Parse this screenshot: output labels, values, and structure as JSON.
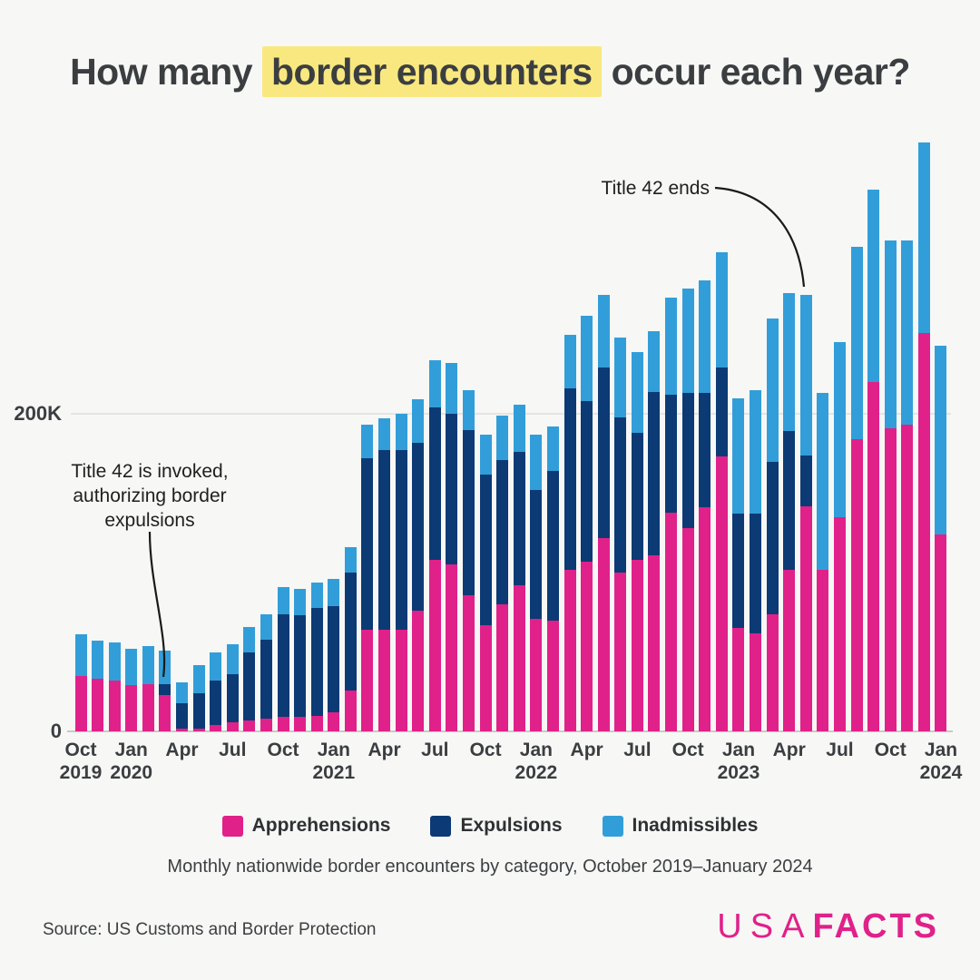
{
  "title": {
    "pre": "How many ",
    "highlight": "border encounters",
    "post": " occur each year?"
  },
  "y_axis": {
    "label_200k": "200K",
    "label_zero": "0"
  },
  "annotations": {
    "invoked": {
      "line1": "Title 42 is invoked,",
      "line2": "authorizing border",
      "line3": "expulsions"
    },
    "ends": "Title 42 ends"
  },
  "legend": [
    {
      "label": "Apprehensions",
      "color": "#e0218a"
    },
    {
      "label": "Expulsions",
      "color": "#0c3a74"
    },
    {
      "label": "Inadmissibles",
      "color": "#329ed9"
    }
  ],
  "subtitle": "Monthly nationwide border encounters by category, October 2019–January 2024",
  "source": "Source: US Customs and Border Protection",
  "logo": {
    "usa": "USA",
    "facts": "FACTS"
  },
  "chart_data": {
    "type": "bar",
    "stacked": true,
    "units": "thousands",
    "title": "How many border encounters occur each year?",
    "subtitle": "Monthly nationwide border encounters by category, October 2019–January 2024",
    "ylim": [
      0,
      380
    ],
    "yticks": [
      {
        "value": 0,
        "label": "0"
      },
      {
        "value": 200,
        "label": "200K"
      }
    ],
    "grid": "200K line only",
    "legend_position": "bottom",
    "x": [
      "Oct 2019",
      "Nov 2019",
      "Dec 2019",
      "Jan 2020",
      "Feb 2020",
      "Mar 2020",
      "Apr 2020",
      "May 2020",
      "Jun 2020",
      "Jul 2020",
      "Aug 2020",
      "Sep 2020",
      "Oct 2020",
      "Nov 2020",
      "Dec 2020",
      "Jan 2021",
      "Feb 2021",
      "Mar 2021",
      "Apr 2021",
      "May 2021",
      "Jun 2021",
      "Jul 2021",
      "Aug 2021",
      "Sep 2021",
      "Oct 2021",
      "Nov 2021",
      "Dec 2021",
      "Jan 2022",
      "Feb 2022",
      "Mar 2022",
      "Apr 2022",
      "May 2022",
      "Jun 2022",
      "Jul 2022",
      "Aug 2022",
      "Sep 2022",
      "Oct 2022",
      "Nov 2022",
      "Dec 2022",
      "Jan 2023",
      "Feb 2023",
      "Mar 2023",
      "Apr 2023",
      "May 2023",
      "Jun 2023",
      "Jul 2023",
      "Aug 2023",
      "Sep 2023",
      "Oct 2023",
      "Nov 2023",
      "Dec 2023",
      "Jan 2024"
    ],
    "series": [
      {
        "name": "Apprehensions",
        "color": "#e0218a",
        "values": [
          35,
          33,
          32,
          29,
          30,
          23,
          2,
          2,
          4,
          6,
          7,
          8,
          9,
          9,
          10,
          12,
          26,
          64,
          64,
          64,
          76,
          108,
          105,
          86,
          67,
          80,
          92,
          71,
          70,
          102,
          107,
          122,
          100,
          108,
          111,
          138,
          128,
          141,
          173,
          65,
          62,
          74,
          102,
          142,
          102,
          135,
          184,
          220,
          191,
          193,
          251,
          124
        ]
      },
      {
        "name": "Expulsions",
        "color": "#0c3a74",
        "values": [
          0,
          0,
          0,
          0,
          0,
          7,
          16,
          22,
          28,
          30,
          43,
          50,
          65,
          64,
          68,
          67,
          74,
          108,
          113,
          113,
          106,
          96,
          95,
          104,
          95,
          91,
          84,
          81,
          94,
          114,
          101,
          107,
          98,
          80,
          103,
          74,
          85,
          72,
          56,
          72,
          75,
          96,
          87,
          32,
          0,
          0,
          0,
          0,
          0,
          0,
          0,
          0
        ]
      },
      {
        "name": "Inadmissibles",
        "color": "#329ed9",
        "values": [
          26,
          24,
          24,
          23,
          24,
          21,
          13,
          18,
          18,
          19,
          16,
          16,
          17,
          17,
          16,
          17,
          16,
          21,
          20,
          23,
          27,
          30,
          32,
          25,
          25,
          28,
          30,
          35,
          28,
          34,
          54,
          46,
          50,
          51,
          38,
          61,
          66,
          71,
          73,
          73,
          78,
          90,
          87,
          101,
          111,
          110,
          121,
          121,
          118,
          116,
          120,
          119
        ]
      }
    ],
    "x_ticks": [
      {
        "i": 0,
        "month": "Oct",
        "year": "2019"
      },
      {
        "i": 3,
        "month": "Jan",
        "year": "2020"
      },
      {
        "i": 6,
        "month": "Apr"
      },
      {
        "i": 9,
        "month": "Jul"
      },
      {
        "i": 12,
        "month": "Oct"
      },
      {
        "i": 15,
        "month": "Jan",
        "year": "2021"
      },
      {
        "i": 18,
        "month": "Apr"
      },
      {
        "i": 21,
        "month": "Jul"
      },
      {
        "i": 24,
        "month": "Oct"
      },
      {
        "i": 27,
        "month": "Jan",
        "year": "2022"
      },
      {
        "i": 30,
        "month": "Apr"
      },
      {
        "i": 33,
        "month": "Jul"
      },
      {
        "i": 36,
        "month": "Oct"
      },
      {
        "i": 39,
        "month": "Jan",
        "year": "2023"
      },
      {
        "i": 42,
        "month": "Apr"
      },
      {
        "i": 45,
        "month": "Jul"
      },
      {
        "i": 48,
        "month": "Oct"
      },
      {
        "i": 51,
        "month": "Jan",
        "year": "2024"
      }
    ]
  }
}
